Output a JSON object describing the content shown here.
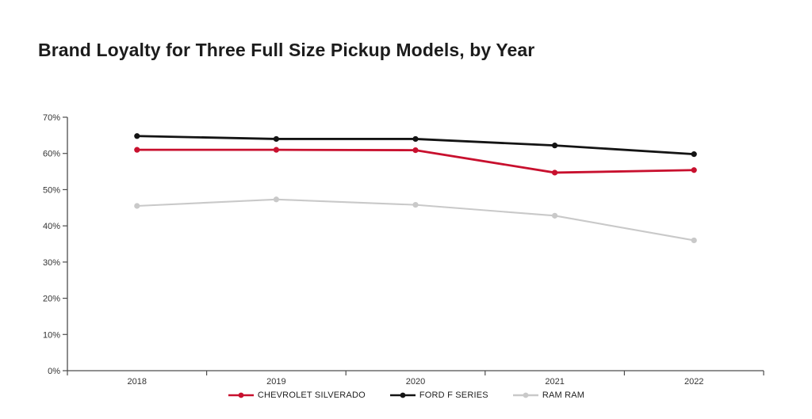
{
  "page": {
    "title": "Brand Loyalty for Three Full Size Pickup Models, by Year"
  },
  "chart_data": {
    "type": "line",
    "title": "Brand Loyalty for Three Full Size Pickup Models, by Year",
    "categories": [
      "2018",
      "2019",
      "2020",
      "2021",
      "2022"
    ],
    "series": [
      {
        "name": "CHEVROLET SILVERADO",
        "color": "#c8102e",
        "values": [
          61,
          61,
          60.9,
          54.7,
          55.4
        ]
      },
      {
        "name": "FORD F SERIES",
        "color": "#141414",
        "values": [
          64.8,
          64,
          64,
          62.2,
          59.8
        ]
      },
      {
        "name": "RAM RAM",
        "color": "#c9c9c9",
        "values": [
          45.5,
          47.3,
          45.8,
          42.8,
          36
        ]
      }
    ],
    "xlabel": "",
    "ylabel": "",
    "ylim": [
      0,
      70
    ],
    "ytick_step": 10,
    "ytick_labels": [
      "0%",
      "10%",
      "20%",
      "30%",
      "40%",
      "50%",
      "60%",
      "70%"
    ],
    "grid": false,
    "legend_position": "bottom",
    "axis_color": "#4d4d4d",
    "background_color": "#ffffff"
  }
}
